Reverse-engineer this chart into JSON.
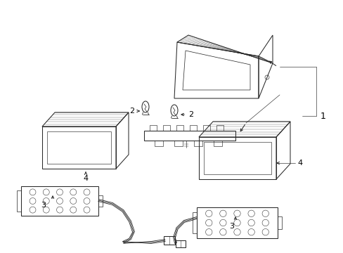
{
  "bg_color": "#ffffff",
  "line_color": "#2a2a2a",
  "label_color": "#000000",
  "lw": 0.75,
  "fig_w": 4.89,
  "fig_h": 3.6,
  "dpi": 100
}
